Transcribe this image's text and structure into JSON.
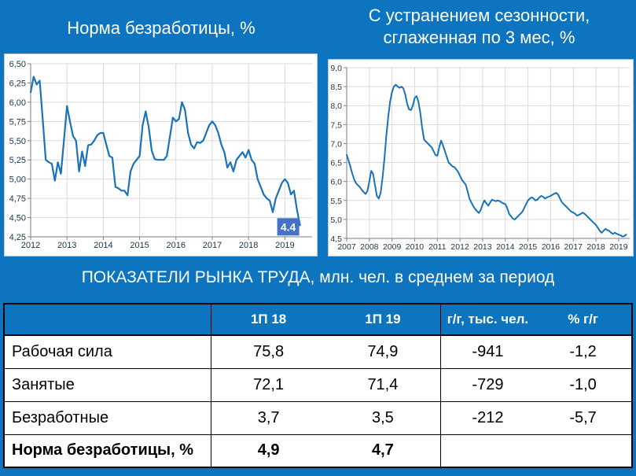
{
  "page": {
    "background_color": "#0d74c0",
    "accent_box_color": "#4472c4"
  },
  "chart_data": [
    {
      "type": "line",
      "title": "Норма безработицы, %",
      "ylim": [
        4.25,
        6.5
      ],
      "y_tick_values": [
        4.25,
        4.5,
        4.75,
        5.0,
        5.25,
        5.5,
        5.75,
        6.0,
        6.25,
        6.5
      ],
      "y_ticks": [
        "4,25",
        "4,50",
        "4,75",
        "5,00",
        "5,25",
        "5,50",
        "5,75",
        "6,00",
        "6,25",
        "6,50"
      ],
      "x_ticks": [
        2012,
        2013,
        2014,
        2015,
        2016,
        2017,
        2018,
        2019
      ],
      "x_domain": [
        2012,
        2019.75
      ],
      "x_start": 2012.0,
      "x_step": "monthly",
      "grid": true,
      "legend": "none",
      "line_color": "#1a72b8",
      "grid_color": "#dadada",
      "axis_color": "#7f7f7f",
      "label_color": "#1f3347",
      "end_label": "4.4",
      "end_label_bg": "#4472c4",
      "values": [
        6.13,
        6.33,
        6.23,
        6.28,
        5.77,
        5.25,
        5.22,
        5.2,
        4.98,
        5.22,
        5.07,
        5.5,
        5.95,
        5.75,
        5.56,
        5.5,
        5.1,
        5.36,
        5.17,
        5.44,
        5.45,
        5.5,
        5.57,
        5.6,
        5.6,
        5.45,
        5.3,
        5.28,
        4.9,
        4.88,
        4.85,
        4.85,
        4.79,
        5.1,
        5.2,
        5.25,
        5.3,
        5.7,
        5.88,
        5.68,
        5.37,
        5.26,
        5.25,
        5.25,
        5.25,
        5.3,
        5.55,
        5.8,
        5.75,
        5.78,
        6.0,
        5.9,
        5.6,
        5.45,
        5.4,
        5.48,
        5.47,
        5.5,
        5.6,
        5.7,
        5.75,
        5.7,
        5.6,
        5.45,
        5.35,
        5.15,
        5.22,
        5.1,
        5.25,
        5.3,
        5.35,
        5.28,
        5.38,
        5.25,
        5.2,
        5.0,
        4.9,
        4.8,
        4.75,
        4.72,
        4.57,
        4.75,
        4.85,
        4.95,
        5.0,
        4.95,
        4.8,
        4.85,
        4.6,
        4.4
      ]
    },
    {
      "type": "line",
      "title": "С устранением сезонности, сглаженная по 3 мес, %",
      "title_lines": [
        "С устранением сезонности,",
        "сглаженная по 3 мес, %"
      ],
      "ylim": [
        4.5,
        9.0
      ],
      "y_tick_values": [
        4.5,
        5.0,
        5.5,
        6.0,
        6.5,
        7.0,
        7.5,
        8.0,
        8.5,
        9.0
      ],
      "y_ticks": [
        "4,5",
        "5,0",
        "5,5",
        "6,0",
        "6,5",
        "7,0",
        "7,5",
        "8,0",
        "8,5",
        "9,0"
      ],
      "x_ticks": [
        2007,
        2008,
        2009,
        2010,
        2011,
        2012,
        2013,
        2014,
        2015,
        2016,
        2017,
        2018,
        2019
      ],
      "x_domain": [
        2007,
        2019.49
      ],
      "x_start": 2007.0,
      "x_step": "monthly",
      "grid": true,
      "legend": "none",
      "line_color": "#1a72b8",
      "grid_color": "#dadada",
      "axis_color": "#7f7f7f",
      "label_color": "#1f3347",
      "values": [
        6.7,
        6.55,
        6.38,
        6.2,
        6.05,
        5.95,
        5.9,
        5.85,
        5.78,
        5.72,
        5.67,
        5.75,
        6.0,
        6.28,
        6.2,
        5.9,
        5.62,
        5.55,
        5.7,
        6.1,
        6.6,
        7.2,
        7.7,
        8.1,
        8.35,
        8.5,
        8.55,
        8.5,
        8.47,
        8.5,
        8.45,
        8.3,
        8.05,
        7.9,
        7.88,
        8.0,
        8.2,
        8.25,
        8.1,
        7.8,
        7.4,
        7.1,
        7.05,
        7.0,
        6.95,
        6.9,
        6.8,
        6.7,
        6.68,
        6.9,
        7.08,
        6.95,
        6.8,
        6.65,
        6.5,
        6.45,
        6.4,
        6.38,
        6.32,
        6.25,
        6.15,
        6.05,
        5.98,
        5.92,
        5.75,
        5.55,
        5.45,
        5.35,
        5.28,
        5.22,
        5.17,
        5.25,
        5.4,
        5.5,
        5.42,
        5.36,
        5.45,
        5.52,
        5.5,
        5.48,
        5.5,
        5.48,
        5.45,
        5.42,
        5.4,
        5.3,
        5.15,
        5.08,
        5.02,
        5.0,
        5.05,
        5.1,
        5.15,
        5.2,
        5.3,
        5.4,
        5.5,
        5.55,
        5.58,
        5.55,
        5.5,
        5.52,
        5.58,
        5.62,
        5.6,
        5.55,
        5.58,
        5.6,
        5.62,
        5.65,
        5.68,
        5.7,
        5.65,
        5.55,
        5.45,
        5.4,
        5.35,
        5.3,
        5.25,
        5.2,
        5.18,
        5.15,
        5.1,
        5.12,
        5.15,
        5.18,
        5.15,
        5.1,
        5.05,
        5.0,
        4.95,
        4.9,
        4.85,
        4.78,
        4.7,
        4.65,
        4.7,
        4.75,
        4.72,
        4.7,
        4.65,
        4.62,
        4.65,
        4.62,
        4.6,
        4.58,
        4.55,
        4.56,
        4.6
      ]
    },
    {
      "type": "table",
      "title": "ПОКАЗАТЕЛИ РЫНКА ТРУДА, млн. чел. в среднем за период",
      "columns": [
        "",
        "1П 18",
        "1П 19",
        "г/г, тыс. чел.",
        "% г/г"
      ],
      "rows": [
        [
          "Рабочая сила",
          "75,8",
          "74,9",
          "-941",
          "-1,2"
        ],
        [
          "Занятые",
          "72,1",
          "71,4",
          "-729",
          "-1,0"
        ],
        [
          "Безработные",
          "3,7",
          "3,5",
          "-212",
          "-5,7"
        ],
        [
          "Норма безработицы, %",
          "4,9",
          "4,7",
          "",
          ""
        ]
      ],
      "value_colors": {
        "negative_strong": "#c00000",
        "negative_soft": "#4a86c6"
      }
    }
  ]
}
